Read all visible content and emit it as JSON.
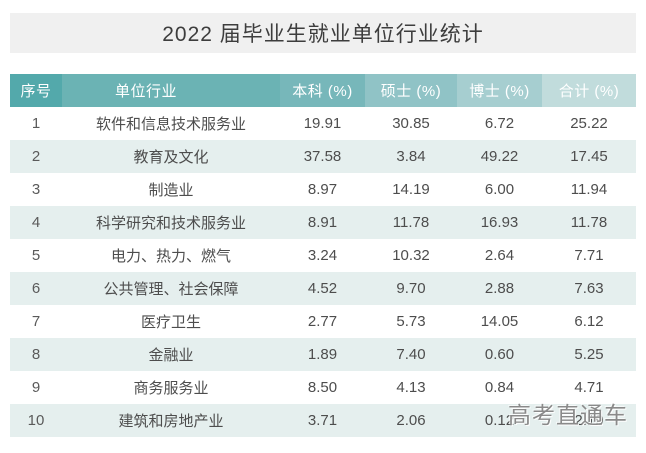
{
  "title": "2022 届毕业生就业单位行业统计",
  "watermark": "高考直通车",
  "colors": {
    "title_bar_bg": "#f0f0f0",
    "title_text": "#3d3d3d",
    "stripe_row_bg": "#e5efee",
    "body_text": "#4d4d4d",
    "header_text": "#ffffff",
    "watermark_text": "#8a8a8a",
    "header_cells": [
      "#53a9ab",
      "#6bb3b4",
      "#77b7ba",
      "#90c3c6",
      "#a6ced0",
      "#c1dcdc"
    ]
  },
  "chart_data": {
    "type": "table",
    "title": "2022 届毕业生就业单位行业统计",
    "columns": [
      "序号",
      "单位行业",
      "本科 (%)",
      "硕士 (%)",
      "博士 (%)",
      "合计 (%)"
    ],
    "rows": [
      [
        "1",
        "软件和信息技术服务业",
        "19.91",
        "30.85",
        "6.72",
        "25.22"
      ],
      [
        "2",
        "教育及文化",
        "37.58",
        "3.84",
        "49.22",
        "17.45"
      ],
      [
        "3",
        "制造业",
        "8.97",
        "14.19",
        "6.00",
        "11.94"
      ],
      [
        "4",
        "科学研究和技术服务业",
        "8.91",
        "11.78",
        "16.93",
        "11.78"
      ],
      [
        "5",
        "电力、热力、燃气",
        "3.24",
        "10.32",
        "2.64",
        "7.71"
      ],
      [
        "6",
        "公共管理、社会保障",
        "4.52",
        "9.70",
        "2.88",
        "7.63"
      ],
      [
        "7",
        "医疗卫生",
        "2.77",
        "5.73",
        "14.05",
        "6.12"
      ],
      [
        "8",
        "金融业",
        "1.89",
        "7.40",
        "0.60",
        "5.25"
      ],
      [
        "9",
        "商务服务业",
        "8.50",
        "4.13",
        "0.84",
        "4.71"
      ],
      [
        "10",
        "建筑和房地产业",
        "3.71",
        "2.06",
        "0.12",
        "2.19"
      ]
    ]
  }
}
